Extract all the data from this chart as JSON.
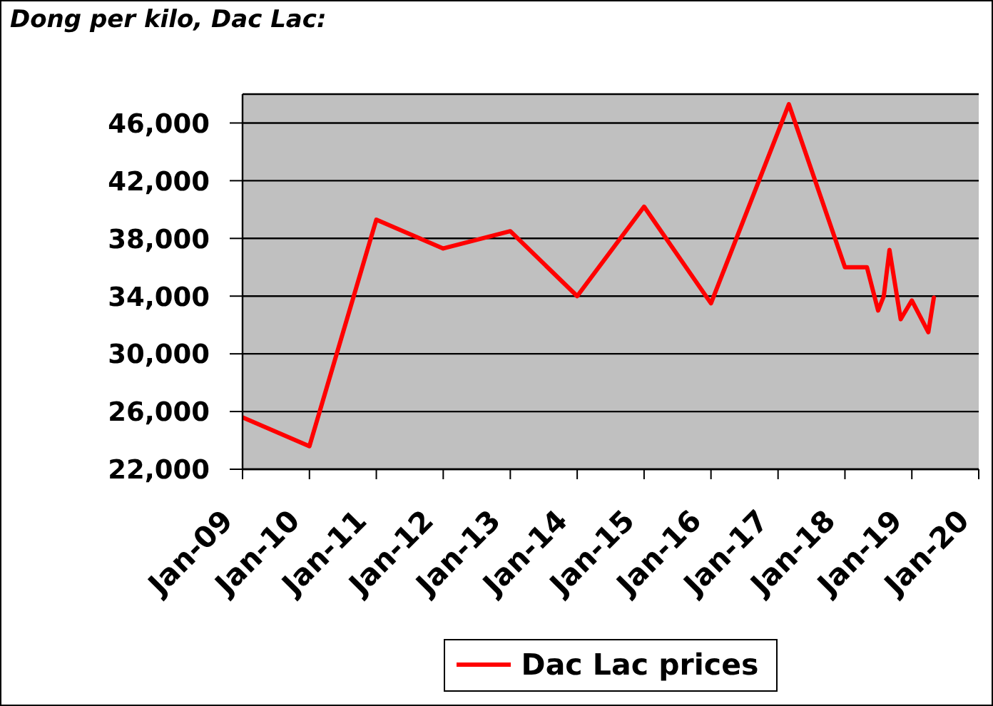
{
  "chart_data": {
    "type": "line",
    "title": "Dong per kilo, Dac Lac:",
    "x": [
      "2009-01",
      "2010-01",
      "2011-01",
      "2012-01",
      "2013-01",
      "2014-01",
      "2015-01",
      "2016-01",
      "2017-03",
      "2018-01",
      "2018-05",
      "2018-07",
      "2018-08",
      "2018-09",
      "2018-11",
      "2019-01",
      "2019-04",
      "2019-05"
    ],
    "series": [
      {
        "name": "Dac Lac prices",
        "color": "#ff0000",
        "values": [
          25600,
          23600,
          39300,
          37300,
          38500,
          34000,
          40200,
          33500,
          47300,
          36000,
          36000,
          33000,
          34000,
          37200,
          32400,
          33700,
          31500,
          33900
        ]
      }
    ],
    "xlim": [
      "2009-01",
      "2020-01"
    ],
    "xticks": [
      {
        "value": "2009-01",
        "label": "Jan-09"
      },
      {
        "value": "2010-01",
        "label": "Jan-10"
      },
      {
        "value": "2011-01",
        "label": "Jan-11"
      },
      {
        "value": "2012-01",
        "label": "Jan-12"
      },
      {
        "value": "2013-01",
        "label": "Jan-13"
      },
      {
        "value": "2014-01",
        "label": "Jan-14"
      },
      {
        "value": "2015-01",
        "label": "Jan-15"
      },
      {
        "value": "2016-01",
        "label": "Jan-16"
      },
      {
        "value": "2017-01",
        "label": "Jan-17"
      },
      {
        "value": "2018-01",
        "label": "Jan-18"
      },
      {
        "value": "2019-01",
        "label": "Jan-19"
      },
      {
        "value": "2020-01",
        "label": "Jan-20"
      }
    ],
    "ylim": [
      22000,
      48000
    ],
    "yticks": [
      {
        "value": 22000,
        "label": "22,000"
      },
      {
        "value": 26000,
        "label": "26,000"
      },
      {
        "value": 30000,
        "label": "30,000"
      },
      {
        "value": 34000,
        "label": "34,000"
      },
      {
        "value": 38000,
        "label": "38,000"
      },
      {
        "value": 42000,
        "label": "42,000"
      },
      {
        "value": 46000,
        "label": "46,000"
      }
    ],
    "grid": "y",
    "legend": "bottom",
    "marker": "none",
    "line_style": "solid"
  }
}
